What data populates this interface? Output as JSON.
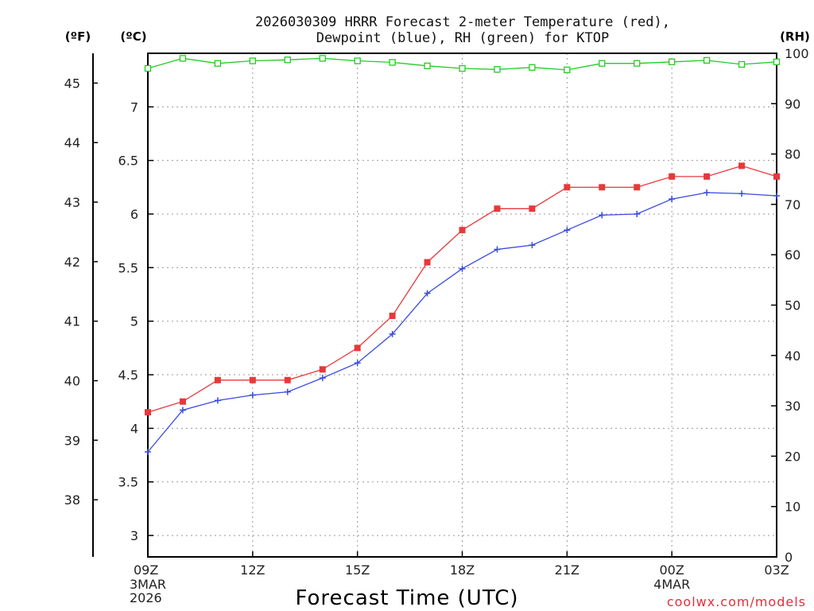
{
  "chart_data": {
    "type": "line",
    "title": "2026030309 HRRR Forecast 2-meter Temperature (red),",
    "subtitle": "Dewpoint (blue), RH (green) for KTOP",
    "xlabel": "Forecast Time (UTC)",
    "credit": "coolwx.com/models",
    "units": {
      "fahrenheit": "(ºF)",
      "celsius": "(ºC)",
      "rh": "(RH)"
    },
    "x_ticks": [
      {
        "hour": 0,
        "label": "09Z",
        "date": "3MAR",
        "year": "2026"
      },
      {
        "hour": 3,
        "label": "12Z"
      },
      {
        "hour": 6,
        "label": "15Z"
      },
      {
        "hour": 9,
        "label": "18Z"
      },
      {
        "hour": 12,
        "label": "21Z"
      },
      {
        "hour": 15,
        "label": "00Z",
        "date": "4MAR"
      },
      {
        "hour": 18,
        "label": "03Z"
      }
    ],
    "xlim": [
      0,
      18
    ],
    "ylim_celsius": [
      2.8,
      7.5
    ],
    "ylim_rh": [
      0,
      100
    ],
    "y_ticks_celsius": [
      "3",
      "3.5",
      "4",
      "4.5",
      "5",
      "5.5",
      "6",
      "6.5",
      "7"
    ],
    "y_ticks_fahrenheit": [
      "38",
      "39",
      "40",
      "41",
      "42",
      "43",
      "44",
      "45"
    ],
    "y_ticks_rh": [
      "0",
      "10",
      "20",
      "30",
      "40",
      "50",
      "60",
      "70",
      "80",
      "90",
      "100"
    ],
    "x": [
      0,
      1,
      2,
      3,
      4,
      5,
      6,
      7,
      8,
      9,
      10,
      11,
      12,
      13,
      14,
      15,
      16,
      17,
      18
    ],
    "series": [
      {
        "name": "Temperature",
        "axis": "celsius",
        "color": "#e8383a",
        "marker": "square",
        "values": [
          4.15,
          4.25,
          4.45,
          4.45,
          4.45,
          4.55,
          4.75,
          5.05,
          5.55,
          5.85,
          6.05,
          6.05,
          6.25,
          6.25,
          6.25,
          6.35,
          6.35,
          6.45,
          6.35
        ]
      },
      {
        "name": "Dewpoint",
        "axis": "celsius",
        "color": "#3a4ae0",
        "marker": "plus",
        "values": [
          3.78,
          4.17,
          4.26,
          4.31,
          4.34,
          4.47,
          4.61,
          4.88,
          5.26,
          5.49,
          5.67,
          5.71,
          5.85,
          5.99,
          6.0,
          6.14,
          6.2,
          6.19,
          6.17
        ]
      },
      {
        "name": "RH",
        "axis": "rh",
        "color": "#22cc22",
        "marker": "hollow-square",
        "values": [
          97,
          99,
          98,
          98.5,
          98.7,
          99,
          98.5,
          98.2,
          97.5,
          97,
          96.8,
          97.2,
          96.7,
          98,
          98,
          98.3,
          98.6,
          97.8,
          98.3
        ]
      }
    ]
  }
}
